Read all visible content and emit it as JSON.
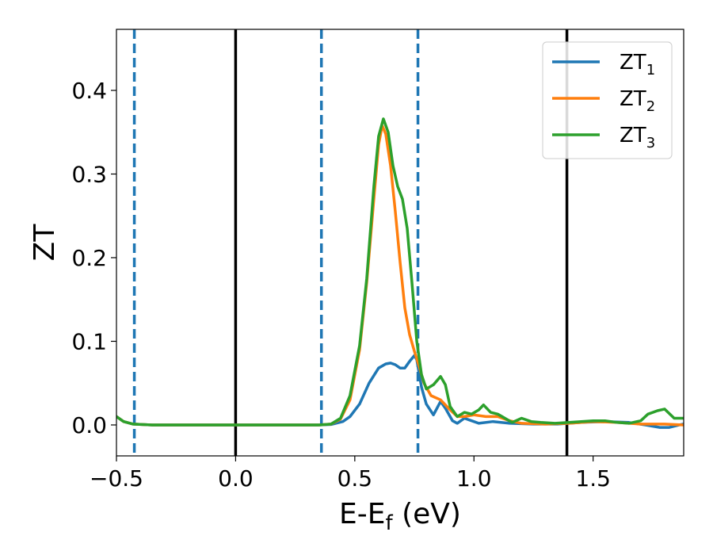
{
  "chart_data": {
    "type": "line",
    "title": "",
    "xlabel": "E-E",
    "xlabel_sub": "f",
    "xlabel_unit": " (eV)",
    "ylabel": "ZT",
    "xlim": [
      -0.5,
      1.88
    ],
    "ylim": [
      -0.037,
      0.473
    ],
    "grid": false,
    "legend_position": "top-right",
    "xticks": [
      -0.5,
      0.0,
      0.5,
      1.0,
      1.5
    ],
    "xtick_labels": [
      "−0.5",
      "0.0",
      "0.5",
      "1.0",
      "1.5"
    ],
    "yticks": [
      0.0,
      0.1,
      0.2,
      0.3,
      0.4
    ],
    "ytick_labels": [
      "0.0",
      "0.1",
      "0.2",
      "0.3",
      "0.4"
    ],
    "vlines": [
      {
        "x": 0.0,
        "style": "solid",
        "color": "#000000"
      },
      {
        "x": 1.39,
        "style": "solid",
        "color": "#000000"
      },
      {
        "x": -0.425,
        "style": "dashed",
        "color": "#1f77b4"
      },
      {
        "x": 0.36,
        "style": "dashed",
        "color": "#1f77b4"
      },
      {
        "x": 0.765,
        "style": "dashed",
        "color": "#1f77b4"
      }
    ],
    "series": [
      {
        "name": "ZT",
        "name_sub": "1",
        "color": "#1f77b4",
        "points": [
          [
            -0.5,
            0.01
          ],
          [
            -0.47,
            0.004
          ],
          [
            -0.43,
            0.001
          ],
          [
            -0.35,
            0
          ],
          [
            0.35,
            0
          ],
          [
            0.4,
            0.0005
          ],
          [
            0.45,
            0.004
          ],
          [
            0.48,
            0.01
          ],
          [
            0.52,
            0.025
          ],
          [
            0.56,
            0.05
          ],
          [
            0.6,
            0.068
          ],
          [
            0.63,
            0.073
          ],
          [
            0.65,
            0.074
          ],
          [
            0.67,
            0.072
          ],
          [
            0.69,
            0.068
          ],
          [
            0.71,
            0.068
          ],
          [
            0.73,
            0.076
          ],
          [
            0.75,
            0.083
          ],
          [
            0.76,
            0.078
          ],
          [
            0.78,
            0.045
          ],
          [
            0.8,
            0.025
          ],
          [
            0.83,
            0.012
          ],
          [
            0.86,
            0.028
          ],
          [
            0.88,
            0.02
          ],
          [
            0.91,
            0.005
          ],
          [
            0.93,
            0.002
          ],
          [
            0.96,
            0.008
          ],
          [
            0.99,
            0.005
          ],
          [
            1.02,
            0.002
          ],
          [
            1.08,
            0.004
          ],
          [
            1.15,
            0.002
          ],
          [
            1.25,
            0.001
          ],
          [
            1.35,
            0.001
          ],
          [
            1.45,
            0.003
          ],
          [
            1.55,
            0.004
          ],
          [
            1.65,
            0.003
          ],
          [
            1.72,
            0.0
          ],
          [
            1.78,
            -0.003
          ],
          [
            1.82,
            -0.003
          ],
          [
            1.86,
            0.0
          ],
          [
            1.88,
            0.001
          ]
        ]
      },
      {
        "name": "ZT",
        "name_sub": "2",
        "color": "#ff7f0e",
        "points": [
          [
            -0.5,
            0.01
          ],
          [
            -0.47,
            0.004
          ],
          [
            -0.43,
            0.001
          ],
          [
            -0.35,
            0
          ],
          [
            0.35,
            0
          ],
          [
            0.4,
            0.001
          ],
          [
            0.44,
            0.007
          ],
          [
            0.48,
            0.03
          ],
          [
            0.52,
            0.09
          ],
          [
            0.55,
            0.17
          ],
          [
            0.58,
            0.27
          ],
          [
            0.6,
            0.335
          ],
          [
            0.615,
            0.358
          ],
          [
            0.63,
            0.348
          ],
          [
            0.65,
            0.31
          ],
          [
            0.67,
            0.255
          ],
          [
            0.69,
            0.195
          ],
          [
            0.71,
            0.14
          ],
          [
            0.73,
            0.108
          ],
          [
            0.75,
            0.088
          ],
          [
            0.77,
            0.07
          ],
          [
            0.79,
            0.05
          ],
          [
            0.82,
            0.035
          ],
          [
            0.86,
            0.03
          ],
          [
            0.9,
            0.018
          ],
          [
            0.93,
            0.01
          ],
          [
            0.96,
            0.01
          ],
          [
            1.0,
            0.012
          ],
          [
            1.05,
            0.01
          ],
          [
            1.1,
            0.01
          ],
          [
            1.15,
            0.005
          ],
          [
            1.2,
            0.002
          ],
          [
            1.3,
            0.001
          ],
          [
            1.4,
            0.002
          ],
          [
            1.5,
            0.004
          ],
          [
            1.6,
            0.003
          ],
          [
            1.7,
            0.001
          ],
          [
            1.8,
            0.001
          ],
          [
            1.88,
            0.0
          ]
        ]
      },
      {
        "name": "ZT",
        "name_sub": "3",
        "color": "#2ca02c",
        "points": [
          [
            -0.5,
            0.01
          ],
          [
            -0.47,
            0.004
          ],
          [
            -0.43,
            0.001
          ],
          [
            -0.35,
            0
          ],
          [
            0.35,
            0
          ],
          [
            0.4,
            0.001
          ],
          [
            0.44,
            0.008
          ],
          [
            0.48,
            0.035
          ],
          [
            0.52,
            0.095
          ],
          [
            0.55,
            0.175
          ],
          [
            0.58,
            0.285
          ],
          [
            0.6,
            0.345
          ],
          [
            0.62,
            0.366
          ],
          [
            0.64,
            0.35
          ],
          [
            0.66,
            0.31
          ],
          [
            0.68,
            0.285
          ],
          [
            0.7,
            0.27
          ],
          [
            0.72,
            0.235
          ],
          [
            0.74,
            0.17
          ],
          [
            0.76,
            0.1
          ],
          [
            0.78,
            0.06
          ],
          [
            0.8,
            0.043
          ],
          [
            0.83,
            0.048
          ],
          [
            0.86,
            0.058
          ],
          [
            0.88,
            0.048
          ],
          [
            0.9,
            0.022
          ],
          [
            0.93,
            0.01
          ],
          [
            0.96,
            0.015
          ],
          [
            0.99,
            0.013
          ],
          [
            1.02,
            0.018
          ],
          [
            1.04,
            0.024
          ],
          [
            1.07,
            0.015
          ],
          [
            1.1,
            0.013
          ],
          [
            1.13,
            0.008
          ],
          [
            1.16,
            0.003
          ],
          [
            1.2,
            0.008
          ],
          [
            1.24,
            0.004
          ],
          [
            1.28,
            0.003
          ],
          [
            1.34,
            0.002
          ],
          [
            1.4,
            0.003
          ],
          [
            1.45,
            0.004
          ],
          [
            1.5,
            0.005
          ],
          [
            1.55,
            0.005
          ],
          [
            1.6,
            0.003
          ],
          [
            1.65,
            0.002
          ],
          [
            1.7,
            0.005
          ],
          [
            1.73,
            0.013
          ],
          [
            1.77,
            0.017
          ],
          [
            1.8,
            0.019
          ],
          [
            1.84,
            0.008
          ],
          [
            1.88,
            0.008
          ]
        ]
      }
    ]
  }
}
